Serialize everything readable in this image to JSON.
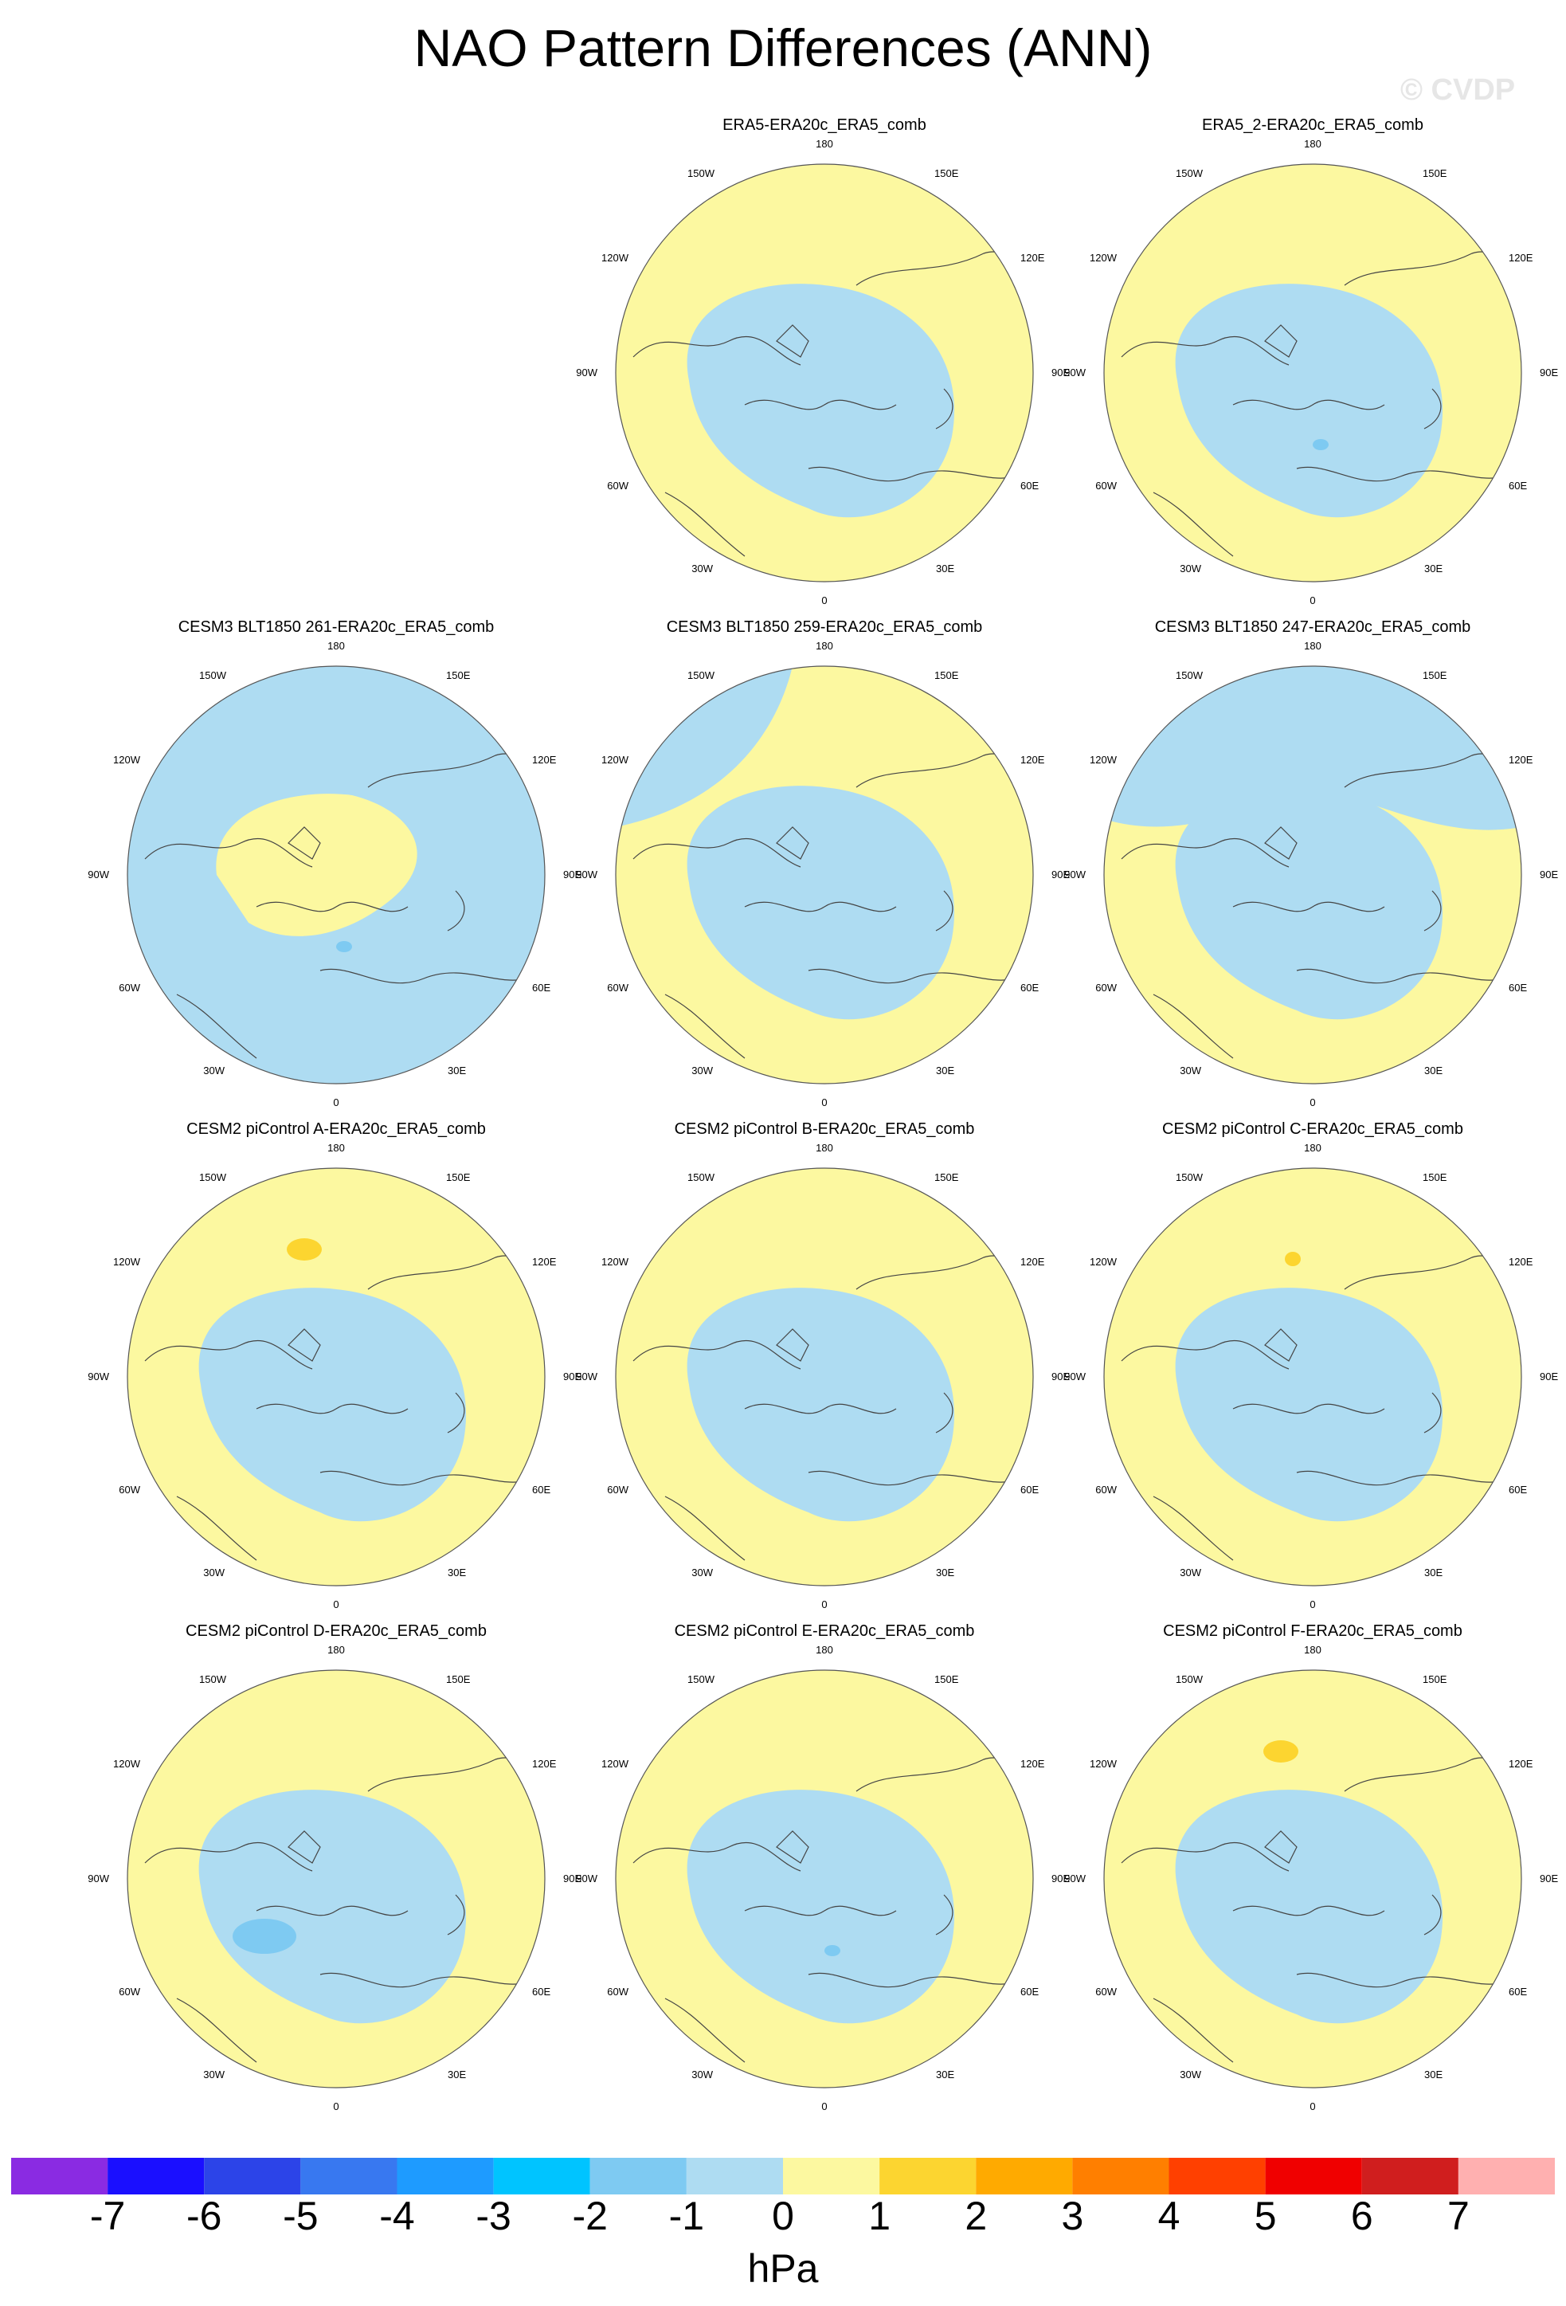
{
  "title": "NAO Pattern Differences (ANN)",
  "watermark": "© CVDP",
  "units": "hPa",
  "colors": {
    "negative": "#aedcf2",
    "positive": "#fcf8a0",
    "coast": "#444444",
    "rim": "#555555"
  },
  "lon_labels": {
    "top": "180",
    "bottom": "0",
    "left": "90W",
    "right": "90E",
    "upper_left_1": "150W",
    "upper_left_2": "120W",
    "upper_right_1": "150E",
    "upper_right_2": "120E",
    "lower_left_1": "60W",
    "lower_left_2": "30W",
    "lower_right_1": "60E",
    "lower_right_2": "30E"
  },
  "panels": [
    {
      "title": "ERA5-ERA20c_ERA5_comb",
      "central": "blue",
      "pacific": "yellow",
      "highlight": "none"
    },
    {
      "title": "ERA5_2-ERA20c_ERA5_comb",
      "central": "blue",
      "pacific": "yellow",
      "highlight": "small-blue"
    },
    {
      "title": "CESM3 BLT1850 261-ERA20c_ERA5_comb",
      "central": "yellow",
      "pacific": "blue",
      "highlight": "small-blue"
    },
    {
      "title": "CESM3 BLT1850 259-ERA20c_ERA5_comb",
      "central": "blue",
      "pacific": "mixed",
      "highlight": "none"
    },
    {
      "title": "CESM3 BLT1850 247-ERA20c_ERA5_comb",
      "central": "blue",
      "pacific": "blue",
      "highlight": "none"
    },
    {
      "title": "CESM2 piControl A-ERA20c_ERA5_comb",
      "central": "blue",
      "pacific": "yellow",
      "highlight": "orange"
    },
    {
      "title": "CESM2 piControl B-ERA20c_ERA5_comb",
      "central": "blue",
      "pacific": "yellow",
      "highlight": "none"
    },
    {
      "title": "CESM2 piControl C-ERA20c_ERA5_comb",
      "central": "blue",
      "pacific": "yellow",
      "highlight": "small-orange"
    },
    {
      "title": "CESM2 piControl D-ERA20c_ERA5_comb",
      "central": "blue",
      "pacific": "yellow",
      "highlight": "blue"
    },
    {
      "title": "CESM2 piControl E-ERA20c_ERA5_comb",
      "central": "blue",
      "pacific": "yellow",
      "highlight": "small-blue"
    },
    {
      "title": "CESM2 piControl F-ERA20c_ERA5_comb",
      "central": "blue",
      "pacific": "yellow",
      "highlight": "orange"
    }
  ],
  "colorbar": {
    "colors": [
      "#8a2be2",
      "#1a0fff",
      "#2c44e8",
      "#3878f0",
      "#1e9bff",
      "#00c4ff",
      "#7ecaf2",
      "#aedcf2",
      "#fcf8a0",
      "#fcd530",
      "#ffaa00",
      "#ff7f00",
      "#ff4000",
      "#f00000",
      "#d01e1e",
      "#ffb0b0"
    ],
    "ticks": [
      "-7",
      "-6",
      "-5",
      "-4",
      "-3",
      "-2",
      "-1",
      "0",
      "1",
      "2",
      "3",
      "4",
      "5",
      "6",
      "7"
    ]
  }
}
